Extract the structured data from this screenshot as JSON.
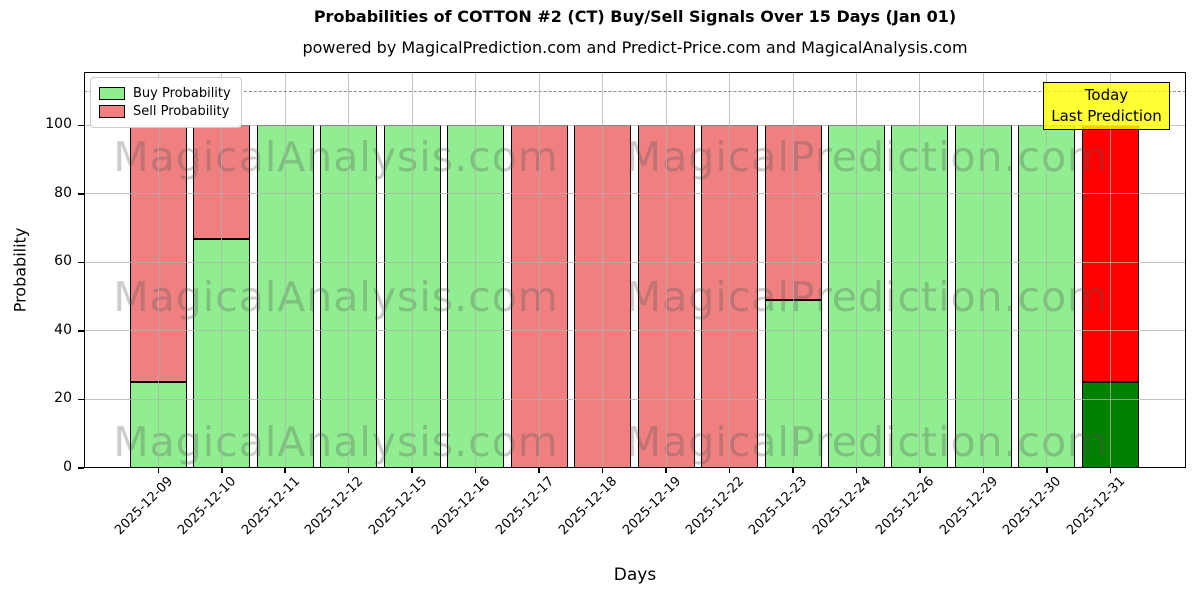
{
  "title": "Probabilities of COTTON #2 (CT) Buy/Sell Signals Over 15 Days (Jan 01)",
  "subtitle": "powered by MagicalPrediction.com and Predict-Price.com and MagicalAnalysis.com",
  "ylabel": "Probability",
  "xlabel": "Days",
  "legend": {
    "items": [
      {
        "label": "Buy Probability",
        "color": "#90EE90"
      },
      {
        "label": "Sell Probability",
        "color": "#F08080"
      }
    ]
  },
  "annotation": {
    "line1": "Today",
    "line2": "Last Prediction",
    "bg_color": "#FFFF00"
  },
  "watermarks": [
    "MagicalAnalysis.com",
    "MagicalPrediction.com"
  ],
  "chart_data": {
    "type": "bar",
    "stacked": true,
    "title": "Probabilities of COTTON #2 (CT) Buy/Sell Signals Over 15 Days (Jan 01)",
    "xlabel": "Days",
    "ylabel": "Probability",
    "categories": [
      "2025-12-09",
      "2025-12-10",
      "2025-12-11",
      "2025-12-12",
      "2025-12-15",
      "2025-12-16",
      "2025-12-17",
      "2025-12-18",
      "2025-12-19",
      "2025-12-22",
      "2025-12-23",
      "2025-12-24",
      "2025-12-26",
      "2025-12-29",
      "2025-12-30",
      "2025-12-31"
    ],
    "series": [
      {
        "name": "Buy Probability",
        "color": "#90EE90",
        "values": [
          25,
          67,
          100,
          100,
          100,
          100,
          0,
          0,
          0,
          0,
          49,
          100,
          100,
          100,
          100,
          25
        ]
      },
      {
        "name": "Sell Probability",
        "color": "#F08080",
        "values": [
          75,
          33,
          0,
          0,
          0,
          0,
          100,
          100,
          100,
          100,
          51,
          0,
          0,
          0,
          0,
          75
        ]
      }
    ],
    "today_bar": {
      "index": 15,
      "buy_color": "#008000",
      "sell_color": "#FF0000"
    },
    "ylim": [
      0,
      115
    ],
    "yticks": [
      0,
      20,
      40,
      60,
      80,
      100
    ],
    "dashed_line_y": 110,
    "grid": true,
    "legend_position": "upper left"
  }
}
